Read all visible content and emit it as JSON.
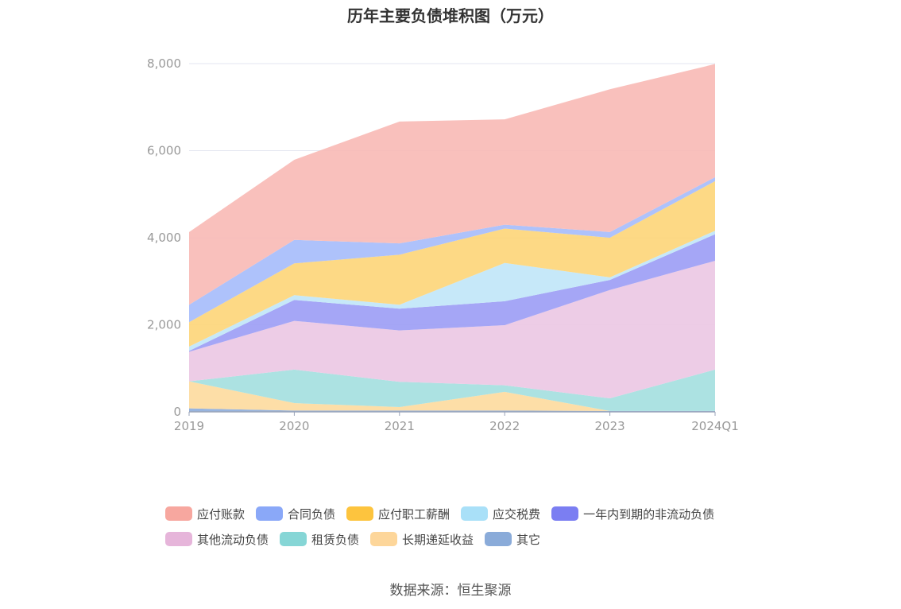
{
  "chart_data": {
    "type": "area",
    "stacked": true,
    "title": "历年主要负债堆积图（万元）",
    "categories": [
      "2019",
      "2020",
      "2021",
      "2022",
      "2023",
      "2024Q1"
    ],
    "ylim": [
      0,
      8000
    ],
    "yticks": [
      "0",
      "2,000",
      "4,000",
      "6,000",
      "8,000"
    ],
    "grid": true,
    "legend_position": "bottom",
    "series": [
      {
        "name": "其它",
        "color": "#8eaedc",
        "values": [
          80,
          30,
          30,
          30,
          20,
          20
        ]
      },
      {
        "name": "长期递延收益",
        "color": "#fddba0",
        "values": [
          620,
          170,
          80,
          430,
          0,
          0
        ]
      },
      {
        "name": "租赁负债",
        "color": "#a5e0e0",
        "values": [
          0,
          770,
          580,
          150,
          290,
          950
        ]
      },
      {
        "name": "其他流动负债",
        "color": "#ecc8e4",
        "values": [
          680,
          1120,
          1180,
          1380,
          2490,
          2500
        ]
      },
      {
        "name": "一年内到期的非流动负债",
        "color": "#9d9ef5",
        "values": [
          20,
          480,
          500,
          550,
          230,
          610
        ]
      },
      {
        "name": "应交税费",
        "color": "#c1e6f9",
        "values": [
          100,
          110,
          90,
          880,
          60,
          80
        ]
      },
      {
        "name": "应付职工薪酬",
        "color": "#fdd67b",
        "values": [
          560,
          730,
          1150,
          790,
          910,
          1140
        ]
      },
      {
        "name": "合同负债",
        "color": "#a7bdfb",
        "values": [
          400,
          540,
          260,
          90,
          130,
          90
        ]
      },
      {
        "name": "应付账款",
        "color": "#f8bbb6",
        "values": [
          1670,
          1840,
          2800,
          2420,
          3280,
          2600
        ]
      }
    ]
  },
  "legend": {
    "rows": [
      [
        {
          "label": "应付账款",
          "color": "#f7a79f"
        },
        {
          "label": "合同负债",
          "color": "#8aa8f8"
        },
        {
          "label": "应付职工薪酬",
          "color": "#fdc43e"
        },
        {
          "label": "应交税费",
          "color": "#a9e0f8"
        },
        {
          "label": "一年内到期的非流动负债",
          "color": "#7b7ef2"
        }
      ],
      [
        {
          "label": "其他流动负债",
          "color": "#e6b5da"
        },
        {
          "label": "租赁负债",
          "color": "#86d6d6"
        },
        {
          "label": "长期递延收益",
          "color": "#fdd69a"
        },
        {
          "label": "其它",
          "color": "#8aabd9"
        }
      ]
    ]
  },
  "source": "数据来源：恒生聚源"
}
